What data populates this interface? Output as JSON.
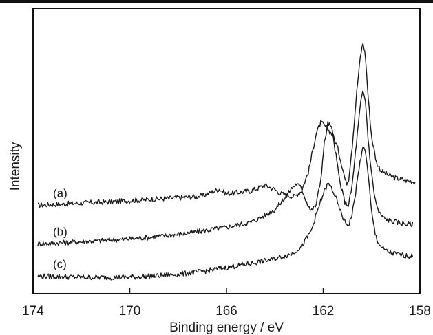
{
  "chart_data": {
    "type": "line",
    "title": "",
    "xlabel": "Binding energy / eV",
    "ylabel": "Intensity",
    "xlim": [
      174,
      158
    ],
    "x_reversed": true,
    "y_tick_labels_shown": false,
    "grid": false,
    "xticks": [
      174,
      170,
      166,
      162,
      158
    ],
    "xtick_labels": [
      "174",
      "170",
      "166",
      "162",
      "158"
    ],
    "ylim": [
      0,
      100
    ],
    "series": [
      {
        "name": "(a)",
        "x": [
          173.8,
          173.0,
          172.0,
          171.0,
          170.0,
          169.0,
          168.0,
          167.0,
          166.3,
          166.0,
          165.0,
          164.4,
          164.0,
          163.8,
          163.5,
          163.2,
          162.9,
          162.6,
          162.3,
          162.1,
          161.9,
          161.75,
          161.6,
          161.4,
          161.2,
          161.05,
          160.95,
          160.8,
          160.6,
          160.45,
          160.35,
          160.25,
          160.15,
          160.0,
          159.8,
          159.6,
          159.3,
          159.0,
          158.7,
          158.5,
          158.2
        ],
        "y": [
          31,
          31.3,
          31.8,
          32.1,
          32.6,
          33.1,
          33.6,
          34.2,
          36.7,
          35.0,
          36.0,
          38.0,
          36.5,
          35.2,
          34.5,
          34.0,
          36.0,
          43.0,
          56.0,
          60.0,
          58.5,
          57.0,
          55.5,
          51.0,
          44.0,
          38.5,
          40.0,
          52.0,
          72.0,
          84.0,
          88.0,
          83.0,
          70.0,
          55.0,
          46.0,
          43.0,
          41.5,
          40.5,
          40.0,
          39.5,
          39.2
        ]
      },
      {
        "name": "(b)",
        "x": [
          173.8,
          173.0,
          172.0,
          171.0,
          170.0,
          169.0,
          168.0,
          167.0,
          166.0,
          165.0,
          164.5,
          164.0,
          163.6,
          163.3,
          163.1,
          162.9,
          162.7,
          162.5,
          162.3,
          162.1,
          161.95,
          161.8,
          161.65,
          161.5,
          161.3,
          161.1,
          160.95,
          160.8,
          160.6,
          160.45,
          160.35,
          160.25,
          160.15,
          160.0,
          159.85,
          159.7,
          159.5,
          159.2,
          158.9,
          158.6,
          158.3
        ],
        "y": [
          17.5,
          17.8,
          18.2,
          18.7,
          19.2,
          19.9,
          20.8,
          22.0,
          23.3,
          25.0,
          27.0,
          29.5,
          33.5,
          37.0,
          38.5,
          37.0,
          32.5,
          29.0,
          31.0,
          40.0,
          53.0,
          60.0,
          58.0,
          50.0,
          38.5,
          32.0,
          31.0,
          38.0,
          55.0,
          67.0,
          71.0,
          67.0,
          55.0,
          42.0,
          33.0,
          28.5,
          26.5,
          25.5,
          25.0,
          24.5,
          24.3
        ]
      },
      {
        "name": "(c)",
        "x": [
          173.8,
          173.0,
          172.0,
          171.0,
          170.0,
          169.0,
          168.0,
          167.0,
          166.0,
          165.0,
          164.0,
          163.3,
          162.9,
          162.5,
          162.2,
          161.95,
          161.8,
          161.65,
          161.5,
          161.3,
          161.1,
          160.95,
          160.8,
          160.65,
          160.5,
          160.4,
          160.3,
          160.2,
          160.1,
          160.0,
          159.85,
          159.7,
          159.5,
          159.2,
          158.9,
          158.6,
          158.3
        ],
        "y": [
          6.2,
          6.0,
          5.8,
          5.7,
          5.8,
          6.2,
          6.8,
          7.8,
          9.2,
          10.6,
          12.2,
          14.0,
          16.5,
          22.0,
          30.0,
          36.0,
          38.5,
          37.0,
          34.0,
          29.0,
          25.0,
          24.0,
          28.0,
          36.0,
          45.0,
          50.0,
          51.0,
          47.0,
          38.0,
          28.5,
          21.0,
          17.5,
          15.5,
          14.3,
          13.8,
          13.4,
          13.1
        ]
      }
    ]
  }
}
